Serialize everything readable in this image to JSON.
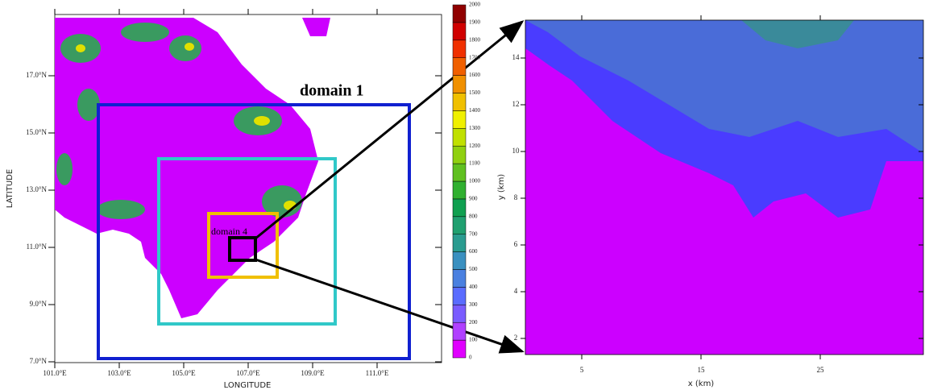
{
  "map": {
    "lat_ticks": [
      "17.0°N",
      "15.0°N",
      "13.0°N",
      "11.0°N",
      "9.0°N",
      "7.0°N"
    ],
    "lon_ticks": [
      "101.0°E",
      "103.0°E",
      "105.0°E",
      "107.0°E",
      "109.0°E",
      "111.0°E"
    ],
    "y_label": "LATITUDE",
    "x_label": "LONGITUDE",
    "domain_1": "domain 1",
    "domain_4": "domain 4"
  },
  "colorbar": {
    "labels": [
      "0",
      "100",
      "200",
      "300",
      "400",
      "500",
      "600",
      "700",
      "800",
      "900",
      "1000",
      "1100",
      "1200",
      "1300",
      "1400",
      "1500",
      "1600",
      "1700",
      "1800",
      "1900",
      "2000"
    ],
    "colors": [
      "#e000ff",
      "#b040ff",
      "#7a5cff",
      "#5a6cff",
      "#4a80e0",
      "#3a90c0",
      "#2a9c90",
      "#20a070",
      "#10a050",
      "#30b030",
      "#60c020",
      "#90d010",
      "#c0e000",
      "#f0f000",
      "#f0c000",
      "#f09000",
      "#f06000",
      "#f03000",
      "#d00000",
      "#900000"
    ]
  },
  "zoom": {
    "x_label": "x (km)",
    "y_label": "y (km)",
    "x_ticks": [
      "5",
      "15",
      "25"
    ],
    "y_ticks": [
      "2",
      "4",
      "6",
      "8",
      "10",
      "12",
      "14"
    ]
  }
}
